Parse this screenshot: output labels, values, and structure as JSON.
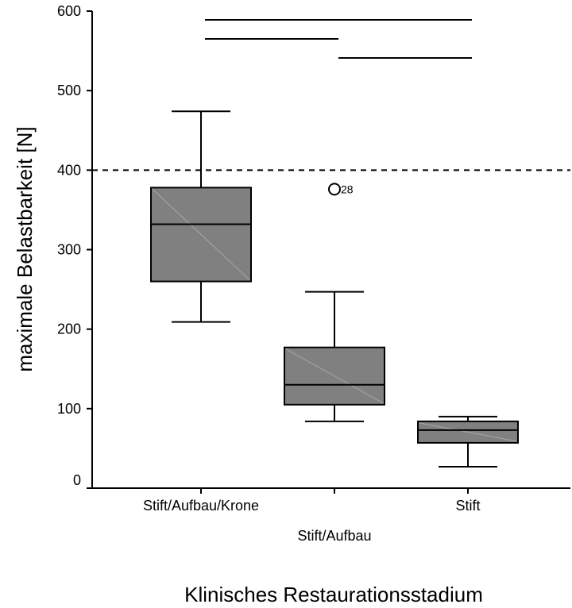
{
  "chart_data": {
    "type": "box",
    "ylabel": "maximale Belastbarkeit [N]",
    "xlabel": "Klinisches Restaurationsstadium",
    "ylim": [
      0,
      600
    ],
    "yticks": [
      "0",
      "100",
      "200",
      "300",
      "400",
      "500",
      "600"
    ],
    "categories": [
      "Stift/Aufbau/Krone",
      "Stift/Aufbau",
      "Stift"
    ],
    "boxes": [
      {
        "category": "Stift/Aufbau/Krone",
        "whisker_low": 209,
        "q1": 260,
        "median": 332,
        "q3": 378,
        "whisker_high": 474
      },
      {
        "category": "Stift/Aufbau",
        "whisker_low": 84,
        "q1": 105,
        "median": 130,
        "q3": 177,
        "whisker_high": 247
      },
      {
        "category": "Stift",
        "whisker_low": 27,
        "q1": 57,
        "median": 73,
        "q3": 84,
        "whisker_high": 90
      }
    ],
    "outliers": [
      {
        "category": "Stift/Aufbau",
        "value": 376,
        "label": "28"
      }
    ],
    "reference_line": {
      "value": 400,
      "style": "dashed"
    },
    "significance_bars": [
      {
        "from": "Stift/Aufbau/Krone",
        "to": "Stift",
        "level": 0
      },
      {
        "from": "Stift/Aufbau/Krone",
        "to": "Stift/Aufbau",
        "level": 1
      },
      {
        "from": "Stift/Aufbau",
        "to": "Stift",
        "level": 2
      }
    ],
    "colors": {
      "box_fill": "#808080",
      "stroke": "#000000"
    }
  }
}
